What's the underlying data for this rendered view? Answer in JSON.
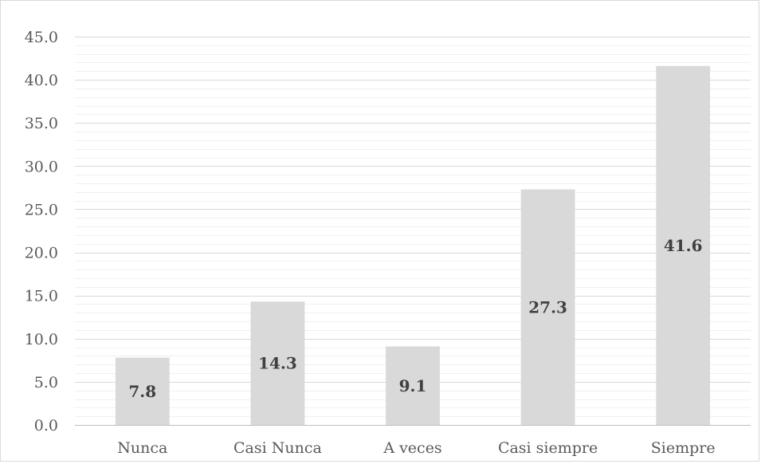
{
  "chart_data": {
    "type": "bar",
    "categories": [
      "Nunca",
      "Casi Nunca",
      "A veces",
      "Casi siempre",
      "Siempre"
    ],
    "values": [
      7.8,
      14.3,
      9.1,
      27.3,
      41.6
    ],
    "data_labels": [
      "7.8",
      "14.3",
      "9.1",
      "27.3",
      "41.6"
    ],
    "title": "",
    "xlabel": "",
    "ylabel": "",
    "ylim": [
      0,
      45
    ],
    "y_ticks": [
      "0.0",
      "5.0",
      "10.0",
      "15.0",
      "20.0",
      "25.0",
      "30.0",
      "35.0",
      "40.0",
      "45.0"
    ],
    "grid": true,
    "minor_grid": true,
    "legend": "none",
    "colors": {
      "bar": "#d9d9d9",
      "major_grid": "#d9d9d9",
      "minor_grid": "#f0f0f0",
      "axis": "#bfbfbf",
      "tick_text": "#595959",
      "data_label_text": "#404040"
    }
  }
}
